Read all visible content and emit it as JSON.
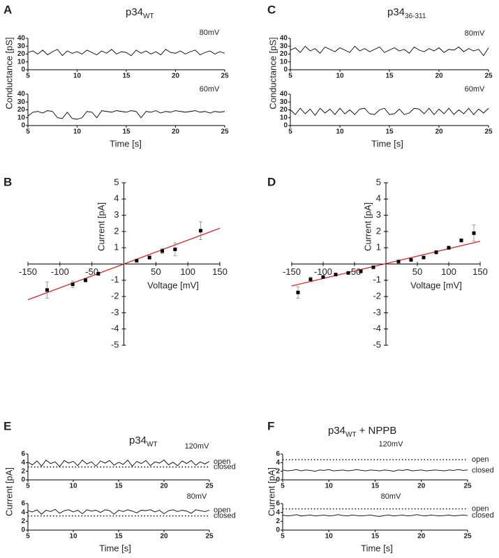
{
  "chart_data": [
    {
      "type": "line",
      "panel": "A",
      "title": "p34",
      "title_sub": "WT",
      "annotation": "80mV",
      "ylabel": "Conductance [pS]",
      "xlim": [
        5,
        25
      ],
      "xticks": [
        5,
        10,
        15,
        20,
        25
      ],
      "ylim": [
        0,
        40
      ],
      "yticks": [
        0,
        10,
        20,
        30,
        40
      ],
      "color": "#000000",
      "x": [
        5,
        5.5,
        6,
        6.5,
        7,
        7.5,
        8,
        8.5,
        9,
        9.5,
        10,
        10.5,
        11,
        11.5,
        12,
        12.5,
        13,
        13.5,
        14,
        14.5,
        15,
        15.5,
        16,
        16.5,
        17,
        17.5,
        18,
        18.5,
        19,
        19.5,
        20,
        20.5,
        21,
        21.5,
        22,
        22.5,
        23,
        23.5,
        24,
        24.5,
        25
      ],
      "values": [
        22,
        24,
        20,
        25,
        19,
        23,
        26,
        18,
        24,
        21,
        23,
        20,
        25,
        22,
        19,
        24,
        21,
        26,
        20,
        23,
        22,
        18,
        25,
        21,
        24,
        20,
        23,
        19,
        26,
        22,
        21,
        24,
        20,
        23,
        25,
        19,
        22,
        24,
        20,
        23,
        21
      ]
    },
    {
      "type": "line",
      "annotation": "60mV",
      "xlabel": "Time [s]",
      "xlim": [
        5,
        25
      ],
      "xticks": [
        5,
        10,
        15,
        20,
        25
      ],
      "ylim": [
        0,
        40
      ],
      "yticks": [
        0,
        10,
        20,
        30,
        40
      ],
      "color": "#000000",
      "x": [
        5,
        5.5,
        6,
        6.5,
        7,
        7.5,
        8,
        8.5,
        9,
        9.5,
        10,
        10.5,
        11,
        11.5,
        12,
        12.5,
        13,
        13.5,
        14,
        14.5,
        15,
        15.5,
        16,
        16.5,
        17,
        17.5,
        18,
        18.5,
        19,
        19.5,
        20,
        20.5,
        21,
        21.5,
        22,
        22.5,
        23,
        23.5,
        24,
        24.5,
        25
      ],
      "values": [
        12,
        17,
        18,
        16,
        19,
        18,
        10,
        9,
        17,
        9,
        8,
        10,
        18,
        17,
        10,
        19,
        18,
        17,
        19,
        18,
        17,
        19,
        18,
        10,
        18,
        17,
        19,
        16,
        18,
        17,
        19,
        18,
        17,
        18,
        19,
        17,
        18,
        16,
        18,
        17,
        18
      ]
    },
    {
      "type": "line",
      "panel": "C",
      "title": "p34",
      "title_sub": "36-311",
      "annotation": "80mV",
      "ylabel": "Conductance [pS]",
      "xlim": [
        5,
        25
      ],
      "xticks": [
        5,
        10,
        15,
        20,
        25
      ],
      "ylim": [
        0,
        40
      ],
      "yticks": [
        0,
        10,
        20,
        30,
        40
      ],
      "color": "#000000",
      "x": [
        5,
        5.5,
        6,
        6.5,
        7,
        7.5,
        8,
        8.5,
        9,
        9.5,
        10,
        10.5,
        11,
        11.5,
        12,
        12.5,
        13,
        13.5,
        14,
        14.5,
        15,
        15.5,
        16,
        16.5,
        17,
        17.5,
        18,
        18.5,
        19,
        19.5,
        20,
        20.5,
        21,
        21.5,
        22,
        22.5,
        23,
        23.5,
        24,
        24.5,
        25
      ],
      "values": [
        25,
        28,
        22,
        30,
        24,
        27,
        21,
        29,
        26,
        23,
        28,
        25,
        22,
        30,
        24,
        27,
        23,
        26,
        29,
        22,
        25,
        28,
        24,
        26,
        21,
        29,
        25,
        23,
        27,
        24,
        28,
        22,
        26,
        25,
        29,
        23,
        27,
        24,
        26,
        18,
        28
      ]
    },
    {
      "type": "line",
      "annotation": "60mV",
      "xlabel": "Time [s]",
      "xlim": [
        5,
        25
      ],
      "xticks": [
        5,
        10,
        15,
        20,
        25
      ],
      "ylim": [
        0,
        40
      ],
      "yticks": [
        0,
        10,
        20,
        30,
        40
      ],
      "color": "#000000",
      "x": [
        5,
        5.5,
        6,
        6.5,
        7,
        7.5,
        8,
        8.5,
        9,
        9.5,
        10,
        10.5,
        11,
        11.5,
        12,
        12.5,
        13,
        13.5,
        14,
        14.5,
        15,
        15.5,
        16,
        16.5,
        17,
        17.5,
        18,
        18.5,
        19,
        19.5,
        20,
        20.5,
        21,
        21.5,
        22,
        22.5,
        23,
        23.5,
        24,
        24.5,
        25
      ],
      "values": [
        20,
        14,
        22,
        15,
        21,
        13,
        22,
        16,
        21,
        14,
        22,
        15,
        20,
        14,
        21,
        22,
        15,
        14,
        20,
        22,
        14,
        15,
        21,
        14,
        16,
        22,
        21,
        15,
        22,
        14,
        21,
        15,
        22,
        14,
        20,
        15,
        22,
        14,
        21,
        16,
        22
      ]
    },
    {
      "type": "scatter",
      "panel": "B",
      "xlabel": "Voltage [mV]",
      "ylabel": "Current [pA]",
      "xlim": [
        -150,
        150
      ],
      "xticks": [
        -150,
        -100,
        -50,
        50,
        100,
        150
      ],
      "ylim": [
        -5,
        5
      ],
      "yticks": [
        -5,
        -4,
        -3,
        -2,
        -1,
        1,
        2,
        3,
        4,
        5
      ],
      "color": "#000000",
      "x": [
        -120,
        -80,
        -60,
        -40,
        20,
        40,
        60,
        80,
        120
      ],
      "values": [
        -1.6,
        -1.25,
        -1.0,
        -0.6,
        0.2,
        0.4,
        0.8,
        0.9,
        2.05
      ],
      "errors": [
        0.5,
        0.2,
        0.1,
        0.1,
        0.05,
        0.1,
        0.15,
        0.4,
        0.55
      ],
      "fit": {
        "x": [
          -150,
          150
        ],
        "values": [
          -2.2,
          2.2
        ],
        "color": "#d62728"
      }
    },
    {
      "type": "scatter",
      "panel": "D",
      "xlabel": "Voltage [mV]",
      "ylabel": "Current [pA]",
      "xlim": [
        -150,
        150
      ],
      "xticks": [
        -150,
        -100,
        -50,
        50,
        100,
        150
      ],
      "ylim": [
        -5,
        5
      ],
      "yticks": [
        -5,
        -4,
        -3,
        -2,
        -1,
        1,
        2,
        3,
        4,
        5
      ],
      "color": "#000000",
      "x": [
        -140,
        -120,
        -100,
        -80,
        -60,
        -40,
        -20,
        20,
        40,
        60,
        80,
        100,
        120,
        140
      ],
      "values": [
        -1.75,
        -0.95,
        -0.8,
        -0.65,
        -0.55,
        -0.45,
        -0.2,
        0.15,
        0.25,
        0.4,
        0.72,
        1.0,
        1.45,
        1.9
      ],
      "errors": [
        0.35,
        0.15,
        0.05,
        0.05,
        0.05,
        0.05,
        0.05,
        0.05,
        0.05,
        0.05,
        0.1,
        0.1,
        0.1,
        0.5
      ],
      "fit": {
        "x": [
          -150,
          150
        ],
        "values": [
          -1.35,
          1.4
        ],
        "color": "#d62728"
      }
    },
    {
      "type": "line",
      "panel": "E",
      "title": "p34",
      "title_sub": "WT",
      "annotation": "120mV",
      "ylabel": "Current [pA]",
      "xlim": [
        5,
        25
      ],
      "xticks": [
        5,
        10,
        15,
        20,
        25
      ],
      "ylim": [
        0,
        6
      ],
      "yticks": [
        0,
        2,
        4,
        6
      ],
      "color": "#000000",
      "levels": [
        {
          "label": "open",
          "value": 4.2,
          "line": false
        },
        {
          "label": "closed",
          "value": 3,
          "line": true
        }
      ],
      "x": [
        5,
        5.5,
        6,
        6.5,
        7,
        7.5,
        8,
        8.5,
        9,
        9.5,
        10,
        10.5,
        11,
        11.5,
        12,
        12.5,
        13,
        13.5,
        14,
        14.5,
        15,
        15.5,
        16,
        16.5,
        17,
        17.5,
        18,
        18.5,
        19,
        19.5,
        20,
        20.5,
        21,
        21.5,
        22,
        22.5,
        23,
        23.5,
        24,
        24.5,
        25
      ],
      "values": [
        4.1,
        3.5,
        4.4,
        3.2,
        4.6,
        3.8,
        4.2,
        3.1,
        4.5,
        3.9,
        4.3,
        3.3,
        4.6,
        3.7,
        4.2,
        3.2,
        4.4,
        3.9,
        4.5,
        3.4,
        4.1,
        3.6,
        4.6,
        3.2,
        4.3,
        3.8,
        4.5,
        3.3,
        4.2,
        3.9,
        4.6,
        3.5,
        4.1,
        3.3,
        4.4,
        3.8,
        4.5,
        3.4,
        4.2,
        3.7,
        4.3
      ]
    },
    {
      "type": "line",
      "annotation": "80mV",
      "xlabel": "Time [s]",
      "xlim": [
        5,
        25
      ],
      "xticks": [
        5,
        10,
        15,
        20,
        25
      ],
      "ylim": [
        0,
        6
      ],
      "yticks": [
        0,
        2,
        4,
        6
      ],
      "color": "#000000",
      "levels": [
        {
          "label": "open",
          "value": 4.5,
          "line": false
        },
        {
          "label": "closed",
          "value": 3.2,
          "line": true
        }
      ],
      "x": [
        5,
        5.5,
        6,
        6.5,
        7,
        7.5,
        8,
        8.5,
        9,
        9.5,
        10,
        10.5,
        11,
        11.5,
        12,
        12.5,
        13,
        13.5,
        14,
        14.5,
        15,
        15.5,
        16,
        16.5,
        17,
        17.5,
        18,
        18.5,
        19,
        19.5,
        20,
        20.5,
        21,
        21.5,
        22,
        22.5,
        23,
        23.5,
        24,
        24.5,
        25
      ],
      "values": [
        4.4,
        4.1,
        4.6,
        3.6,
        4.5,
        4.2,
        4.7,
        3.8,
        4.4,
        4.6,
        4.1,
        4.5,
        3.7,
        4.6,
        4.3,
        4.5,
        4.0,
        4.6,
        4.4,
        3.6,
        4.5,
        4.2,
        4.6,
        4.3,
        3.9,
        4.5,
        4.4,
        4.6,
        4.1,
        4.5,
        3.7,
        4.4,
        4.6,
        4.2,
        4.5,
        4.3,
        3.8,
        4.6,
        4.4,
        4.2,
        4.5
      ]
    },
    {
      "type": "line",
      "panel": "F",
      "title": "p34",
      "title_sub": "WT",
      "title_suffix": "+ NPPB",
      "annotation": "120mV",
      "ylabel": "Current [pA]",
      "xlim": [
        5,
        25
      ],
      "xticks": [
        5,
        10,
        15,
        20,
        25
      ],
      "ylim": [
        0,
        6
      ],
      "yticks": [
        0,
        2,
        4,
        6
      ],
      "color": "#000000",
      "levels": [
        {
          "label": "open",
          "value": 4.7,
          "line": true
        },
        {
          "label": "closed",
          "value": 2.2,
          "line": false
        }
      ],
      "x": [
        5,
        5.5,
        6,
        6.5,
        7,
        7.5,
        8,
        8.5,
        9,
        9.5,
        10,
        10.5,
        11,
        11.5,
        12,
        12.5,
        13,
        13.5,
        14,
        14.5,
        15,
        15.5,
        16,
        16.5,
        17,
        17.5,
        18,
        18.5,
        19,
        19.5,
        20,
        20.5,
        21,
        21.5,
        22,
        22.5,
        23,
        23.5,
        24,
        24.5,
        25
      ],
      "values": [
        2.3,
        2.1,
        2.2,
        2.4,
        2.1,
        2.3,
        2.2,
        2.0,
        2.3,
        2.2,
        2.4,
        2.1,
        2.2,
        2.3,
        2.1,
        2.2,
        2.4,
        2.2,
        2.1,
        2.3,
        2.2,
        2.1,
        2.3,
        2.2,
        2.0,
        2.3,
        2.2,
        2.4,
        2.1,
        2.2,
        2.3,
        2.1,
        2.2,
        2.3,
        2.2,
        2.1,
        2.3,
        2.2,
        2.4,
        2.2,
        2.3
      ]
    },
    {
      "type": "line",
      "annotation": "80mV",
      "xlabel": "Time [s]",
      "xlim": [
        5,
        25
      ],
      "xticks": [
        5,
        10,
        15,
        20,
        25
      ],
      "ylim": [
        0,
        6
      ],
      "yticks": [
        0,
        2,
        4,
        6
      ],
      "color": "#000000",
      "levels": [
        {
          "label": "open",
          "value": 4.8,
          "line": true
        },
        {
          "label": "closed",
          "value": 3.3,
          "line": false
        }
      ],
      "x": [
        5,
        5.5,
        6,
        6.5,
        7,
        7.5,
        8,
        8.5,
        9,
        9.5,
        10,
        10.5,
        11,
        11.5,
        12,
        12.5,
        13,
        13.5,
        14,
        14.5,
        15,
        15.5,
        16,
        16.5,
        17,
        17.5,
        18,
        18.5,
        19,
        19.5,
        20,
        20.5,
        21,
        21.5,
        22,
        22.5,
        23,
        23.5,
        24,
        24.5,
        25
      ],
      "values": [
        3.4,
        3.2,
        3.3,
        3.5,
        3.2,
        3.3,
        3.4,
        3.2,
        3.3,
        3.4,
        3.2,
        3.3,
        3.5,
        3.3,
        3.2,
        3.4,
        3.3,
        3.2,
        3.3,
        3.4,
        3.2,
        3.1,
        3.3,
        3.4,
        3.2,
        3.3,
        3.4,
        3.2,
        3.3,
        3.5,
        3.3,
        3.2,
        3.4,
        3.3,
        3.2,
        3.3,
        3.4,
        3.2,
        3.3,
        3.4,
        3.3
      ]
    }
  ]
}
